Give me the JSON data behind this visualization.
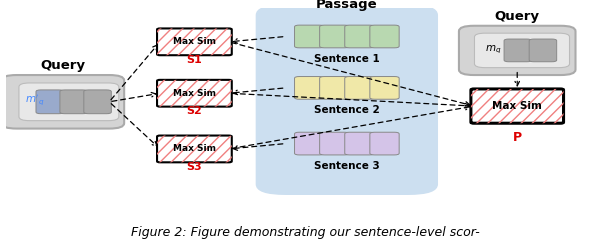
{
  "title": "Figure 2: Figure demonstrating our sentence-level scor-",
  "passage_label": "Passage",
  "query_left_label": "Query",
  "query_right_label": "Query",
  "sentence_labels": [
    "Sentence 1",
    "Sentence 2",
    "Sentence 3"
  ],
  "score_labels": [
    "S1",
    "S2",
    "S3"
  ],
  "final_score_label": "P",
  "sentence_colors": [
    "#b8d8b0",
    "#f0e8a8",
    "#d4c4e8"
  ],
  "passage_bg": "#ccdff0",
  "query_left_bg": "#d0d0d0",
  "query_right_bg": "#d0d0d0",
  "hatch_color": "#f08080",
  "arrow_color": "black",
  "label_color_red": "#dd0000",
  "label_color_blue": "#4488ff",
  "token_blue": "#99aacc",
  "token_grey": "#aaaaaa",
  "fig_width": 6.1,
  "fig_height": 2.52,
  "dpi": 100
}
